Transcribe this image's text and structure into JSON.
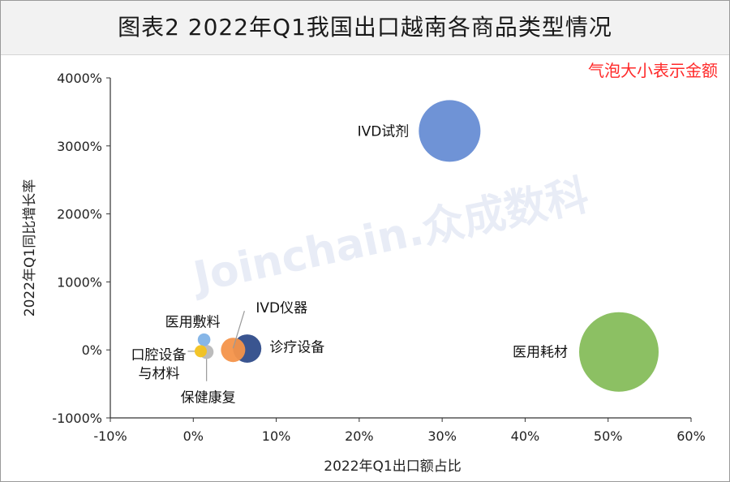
{
  "header": {
    "title": "图表2  2022年Q1我国出口越南各商品类型情况",
    "note": "气泡大小表示金额"
  },
  "watermark": "Joinchain.众成数科",
  "chart_data": {
    "type": "scatter",
    "variant": "bubble",
    "title": "图表2  2022年Q1我国出口越南各商品类型情况",
    "xlabel": "2022年Q1出口额占比",
    "ylabel": "2022年Q1同比增长率",
    "xlim": [
      -10,
      60
    ],
    "ylim": [
      -1000,
      4000
    ],
    "x_ticks": [
      -10,
      0,
      10,
      20,
      30,
      40,
      50,
      60
    ],
    "y_ticks": [
      -1000,
      0,
      1000,
      2000,
      3000,
      4000
    ],
    "x_tick_labels": [
      "-10%",
      "0%",
      "10%",
      "20%",
      "30%",
      "40%",
      "50%",
      "60%"
    ],
    "y_tick_labels": [
      "-1000%",
      "0%",
      "1000%",
      "2000%",
      "3000%",
      "4000%"
    ],
    "grid": false,
    "size_meaning": "气泡大小表示金额",
    "series": [
      {
        "name": "IVD试剂",
        "x": 30.9,
        "y": 3220,
        "size": 30.9,
        "color": "#6f93d6"
      },
      {
        "name": "医用耗材",
        "x": 51.3,
        "y": -30,
        "size": 51.3,
        "color": "#8cc063"
      },
      {
        "name": "诊疗设备",
        "x": 6.5,
        "y": 20,
        "size": 6.5,
        "color": "#2f4c8a"
      },
      {
        "name": "IVD仪器",
        "x": 4.8,
        "y": 0,
        "size": 4.8,
        "color": "#f4934a"
      },
      {
        "name": "医用敷料",
        "x": 1.3,
        "y": 150,
        "size": 1.3,
        "color": "#7fb2e6"
      },
      {
        "name": "保健康复",
        "x": 1.6,
        "y": -30,
        "size": 1.6,
        "color": "#b8b8b8"
      },
      {
        "name": "口腔设备与材料",
        "x": 0.9,
        "y": -20,
        "size": 0.9,
        "color": "#f2c21d"
      }
    ],
    "labels": {
      "IVD试剂": "IVD试剂",
      "医用耗材": "医用耗材",
      "诊疗设备": "诊疗设备",
      "IVD仪器": "IVD仪器",
      "医用敷料": "医用敷料",
      "保健康复": "保健康复",
      "口腔设备与材料_line1": "口腔设备",
      "口腔设备与材料_line2": "与材料"
    }
  }
}
